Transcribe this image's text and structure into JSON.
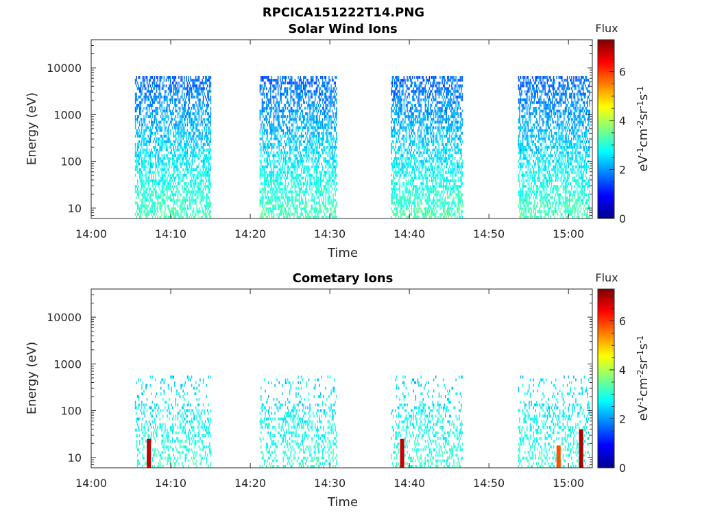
{
  "figure_title": "RPCICA151222T14.PNG",
  "colormap": [
    "#00008f",
    "#0000ff",
    "#0080ff",
    "#00ffff",
    "#80ff80",
    "#ffff00",
    "#ff8000",
    "#ff0000",
    "#800000"
  ],
  "chart_data": [
    {
      "type": "heatmap",
      "title": "Solar Wind Ions",
      "xlabel": "Time",
      "ylabel": "Energy (eV)",
      "y_scale": "log",
      "x_range": [
        "14:00",
        "15:03"
      ],
      "ylim": [
        6,
        40000
      ],
      "x_tick_labels": [
        "14:00",
        "14:10",
        "14:20",
        "14:30",
        "14:40",
        "14:50",
        "15:00"
      ],
      "y_tick_labels": [
        "10",
        "100",
        "1000",
        "10000"
      ],
      "colorbar": {
        "label": "Flux",
        "unit_label": "eV-1cm-2sr-1s-1",
        "range": [
          0,
          7.3
        ],
        "tick_labels": [
          "0",
          "2",
          "4",
          "6"
        ]
      },
      "series": [
        {
          "start": "14:05:30",
          "end": "14:15:00",
          "emin": 6,
          "emax": 7000,
          "level": 1.6
        },
        {
          "start": "14:21:10",
          "end": "14:30:50",
          "emin": 6,
          "emax": 7000,
          "level": 1.6
        },
        {
          "start": "14:37:40",
          "end": "14:46:40",
          "emin": 6,
          "emax": 7000,
          "level": 1.6
        },
        {
          "start": "14:53:40",
          "end": "15:02:40",
          "emin": 6,
          "emax": 7000,
          "level": 1.6
        }
      ]
    },
    {
      "type": "heatmap",
      "title": "Cometary Ions",
      "xlabel": "Time",
      "ylabel": "Energy (eV)",
      "y_scale": "log",
      "x_range": [
        "14:00",
        "15:03"
      ],
      "ylim": [
        6,
        40000
      ],
      "x_tick_labels": [
        "14:00",
        "14:10",
        "14:20",
        "14:30",
        "14:40",
        "14:50",
        "15:00"
      ],
      "y_tick_labels": [
        "10",
        "100",
        "1000",
        "10000"
      ],
      "colorbar": {
        "label": "Flux",
        "unit_label": "eV-1cm-2sr-1s-1",
        "range": [
          0,
          7.3
        ],
        "tick_labels": [
          "0",
          "2",
          "4",
          "6"
        ]
      },
      "series": [
        {
          "start": "14:05:30",
          "end": "14:15:00",
          "emin": 6,
          "emax": 600,
          "level": 2.4
        },
        {
          "start": "14:21:10",
          "end": "14:30:50",
          "emin": 6,
          "emax": 600,
          "level": 2.4
        },
        {
          "start": "14:37:40",
          "end": "14:46:40",
          "emin": 6,
          "emax": 600,
          "level": 2.4
        },
        {
          "start": "14:53:40",
          "end": "15:02:40",
          "emin": 6,
          "emax": 600,
          "level": 2.4
        }
      ],
      "hotspots": [
        {
          "time": "14:07:00",
          "emin": 6,
          "emax": 25,
          "level": 6.8
        },
        {
          "time": "14:38:50",
          "emin": 6,
          "emax": 25,
          "level": 6.8
        },
        {
          "time": "14:58:30",
          "emin": 6,
          "emax": 18,
          "level": 5.8
        },
        {
          "time": "15:01:20",
          "emin": 6,
          "emax": 40,
          "level": 7.0
        }
      ]
    }
  ]
}
